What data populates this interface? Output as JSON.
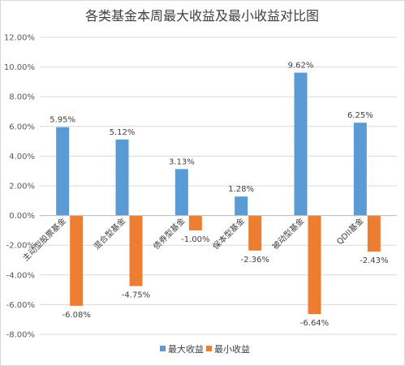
{
  "chart_data": {
    "type": "bar",
    "title": "各类基金本周最大收益及最小收益对比图",
    "categories": [
      "主动型股票基金",
      "混合型基金",
      "债券型基金",
      "保本型基金",
      "被动型基金",
      "QDII基金"
    ],
    "series": [
      {
        "name": "最大收益",
        "values": [
          5.95,
          5.12,
          3.13,
          1.28,
          9.62,
          6.25
        ],
        "labels": [
          "5.95%",
          "5.12%",
          "3.13%",
          "1.28%",
          "9.62%",
          "6.25%"
        ],
        "color": "#5b9bd5"
      },
      {
        "name": "最小收益",
        "values": [
          -6.08,
          -4.75,
          -1.0,
          -2.36,
          -6.64,
          -2.43
        ],
        "labels": [
          "-6.08%",
          "-4.75%",
          "-1.00%",
          "-2.36%",
          "-6.64%",
          "-2.43%"
        ],
        "color": "#ed7d31"
      }
    ],
    "ylim": [
      -8,
      12
    ],
    "yticks": [
      "12.00%",
      "10.00%",
      "8.00%",
      "6.00%",
      "4.00%",
      "2.00%",
      "0.00%",
      "-2.00%",
      "-4.00%",
      "-6.00%",
      "-8.00%"
    ],
    "xlabel": "",
    "ylabel": "",
    "grid": true,
    "legend": "bottom"
  }
}
